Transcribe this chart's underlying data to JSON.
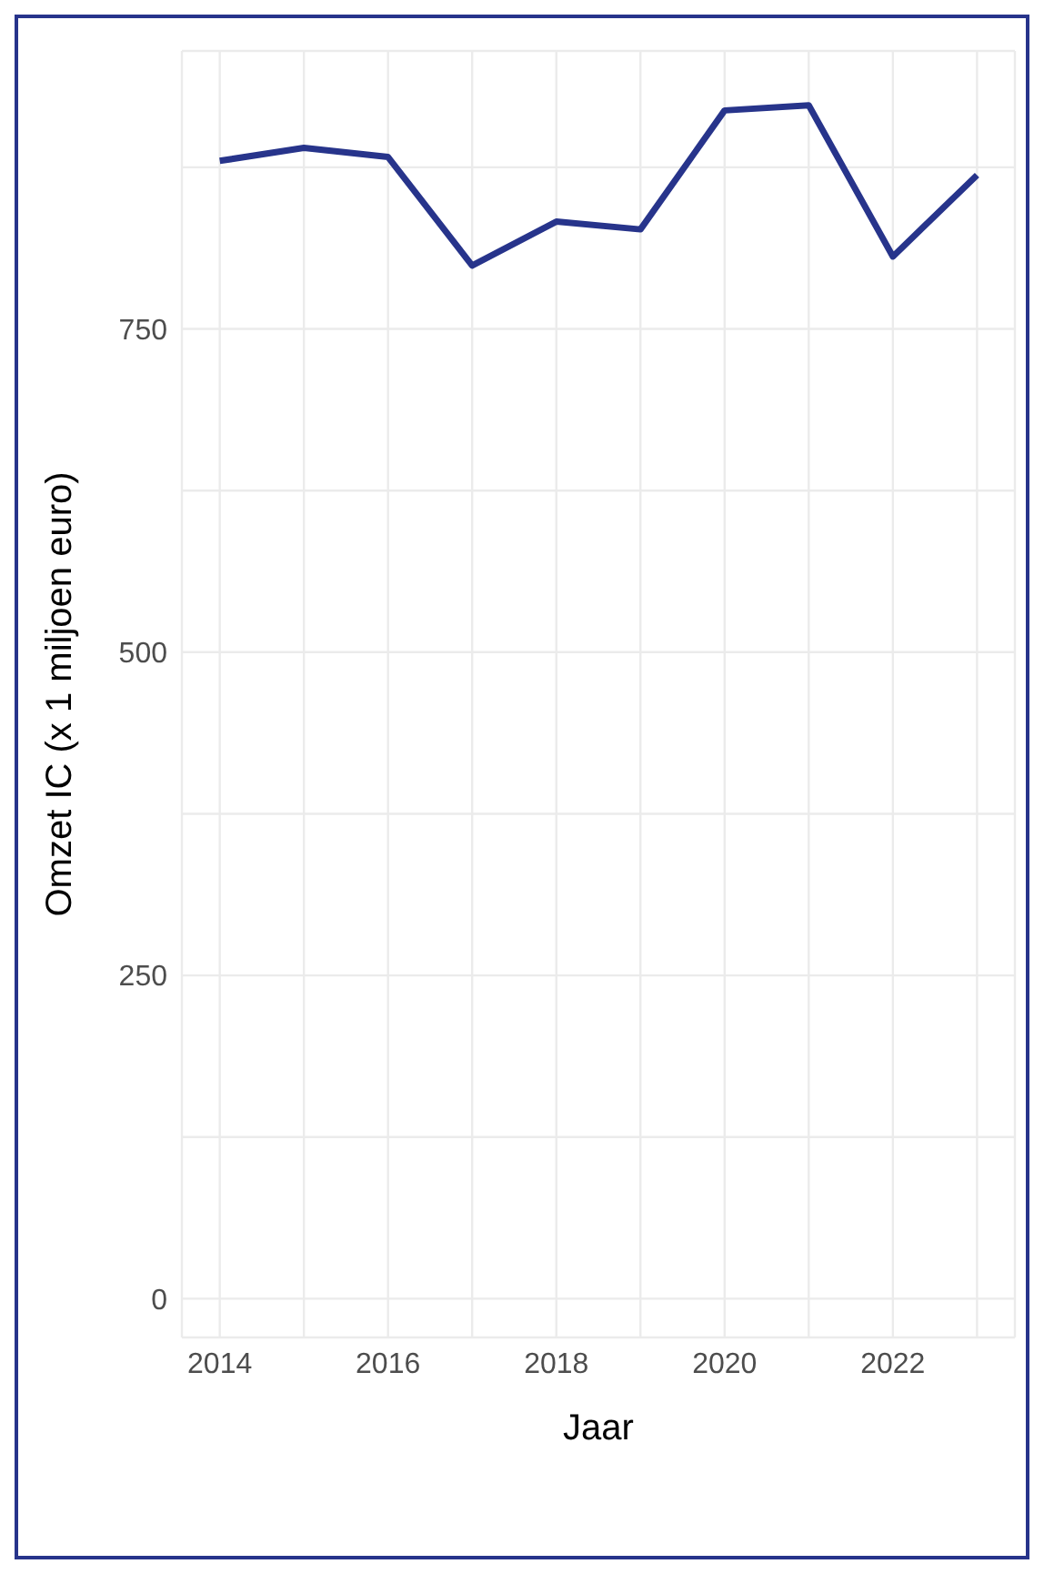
{
  "chart_data": {
    "type": "line",
    "xlabel": "Jaar",
    "ylabel": "Omzet IC (x 1 miljoen euro)",
    "x": [
      2014,
      2015,
      2016,
      2017,
      2018,
      2019,
      2020,
      2021,
      2022,
      2023
    ],
    "series": [
      {
        "color": "#27348b",
        "values": [
          880,
          890,
          883,
          799,
          833,
          827,
          919,
          923,
          806,
          869
        ]
      }
    ],
    "xlim": [
      2013.55,
      2023.45
    ],
    "xticks": [
      2014,
      {
        "value": 2015,
        "label": null
      },
      2016,
      {
        "value": 2017,
        "label": null
      },
      2018,
      {
        "value": 2019,
        "label": null
      },
      2020,
      {
        "value": 2021,
        "label": null
      },
      2022,
      {
        "value": 2023,
        "label": null
      }
    ],
    "ylim": [
      -30,
      965
    ],
    "yticks": [
      0,
      {
        "value": 125,
        "label": null
      },
      250,
      {
        "value": 375,
        "label": null
      },
      500,
      {
        "value": 625,
        "label": null
      },
      750,
      {
        "value": 875,
        "label": null
      }
    ],
    "grid": true,
    "marker": "none",
    "line_style": "solid"
  }
}
